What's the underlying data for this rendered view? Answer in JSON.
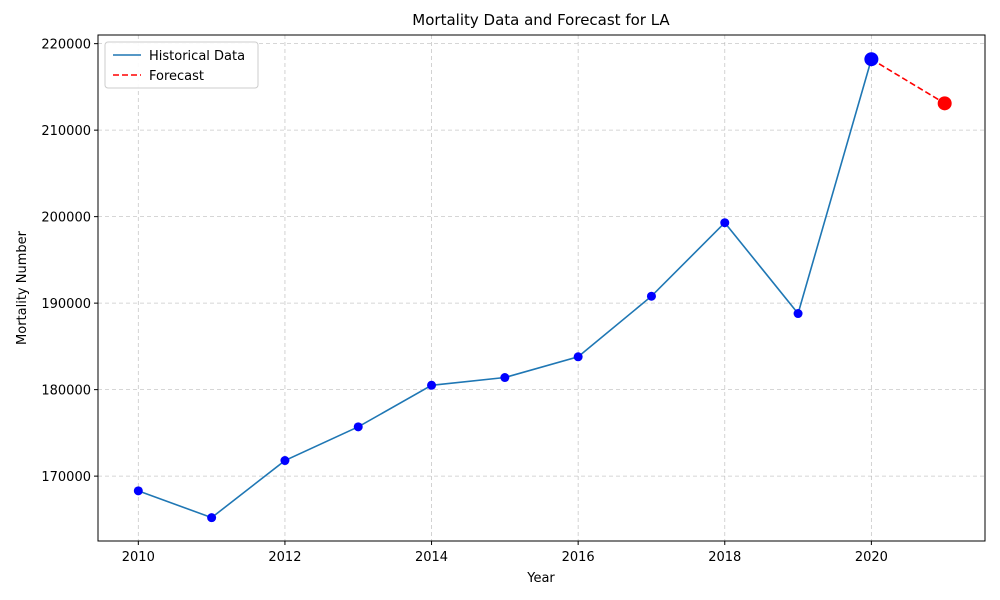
{
  "chart_data": {
    "type": "line",
    "title": "Mortality Data and Forecast for LA",
    "xlabel": "Year",
    "ylabel": "Mortality Number",
    "xlim": [
      2009.45,
      2021.55
    ],
    "ylim": [
      162500,
      221000
    ],
    "x_ticks": [
      2010,
      2012,
      2014,
      2016,
      2018,
      2020
    ],
    "y_ticks": [
      170000,
      180000,
      190000,
      200000,
      210000,
      220000
    ],
    "grid": true,
    "legend_position": "top-left",
    "series": [
      {
        "name": "Historical Data",
        "style": "solid",
        "color": "#1f77b4",
        "marker_color": "#0000ff",
        "x": [
          2010,
          2011,
          2012,
          2013,
          2014,
          2015,
          2016,
          2017,
          2018,
          2019,
          2020
        ],
        "values": [
          168300,
          165200,
          171800,
          175700,
          180500,
          181400,
          183800,
          190800,
          199300,
          188800,
          218200
        ]
      },
      {
        "name": "Forecast",
        "style": "dashed",
        "color": "#ff0000",
        "marker_color": "#ff0000",
        "x": [
          2020,
          2021
        ],
        "values": [
          218200,
          213100
        ]
      }
    ],
    "highlight_points": [
      {
        "x": 2020,
        "y": 218200,
        "color": "#0000ff"
      },
      {
        "x": 2021,
        "y": 213100,
        "color": "#ff0000"
      }
    ]
  }
}
